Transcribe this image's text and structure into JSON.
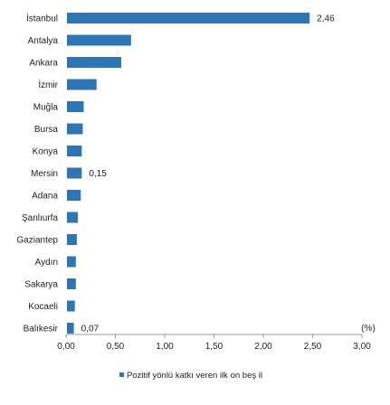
{
  "chart_data": {
    "type": "bar",
    "orientation": "horizontal",
    "categories": [
      "İstanbul",
      "Antalya",
      "Ankara",
      "İzmir",
      "Muğla",
      "Bursa",
      "Konya",
      "Mersin",
      "Adana",
      "Şanlıurfa",
      "Gaziantep",
      "Aydın",
      "Sakarya",
      "Kocaeli",
      "Balıkesir"
    ],
    "series": [
      {
        "name": "Pozitif yönlü katkı veren ilk on beş il",
        "color": "#2e75b6",
        "values": [
          2.46,
          0.65,
          0.55,
          0.3,
          0.17,
          0.16,
          0.15,
          0.15,
          0.14,
          0.11,
          0.1,
          0.09,
          0.09,
          0.08,
          0.07
        ]
      }
    ],
    "data_labels": [
      {
        "category": "İstanbul",
        "text": "2,46"
      },
      {
        "category": "Mersin",
        "text": "0,15"
      },
      {
        "category": "Balıkesir",
        "text": "0,07"
      }
    ],
    "x_ticks": [
      "0,00",
      "0,50",
      "1,00",
      "1,50",
      "2,00",
      "2,50",
      "3,00"
    ],
    "xlim": [
      0,
      3
    ],
    "unit_label": "(%)",
    "legend_position": "bottom",
    "grid": false,
    "axis_color": "#999999"
  }
}
